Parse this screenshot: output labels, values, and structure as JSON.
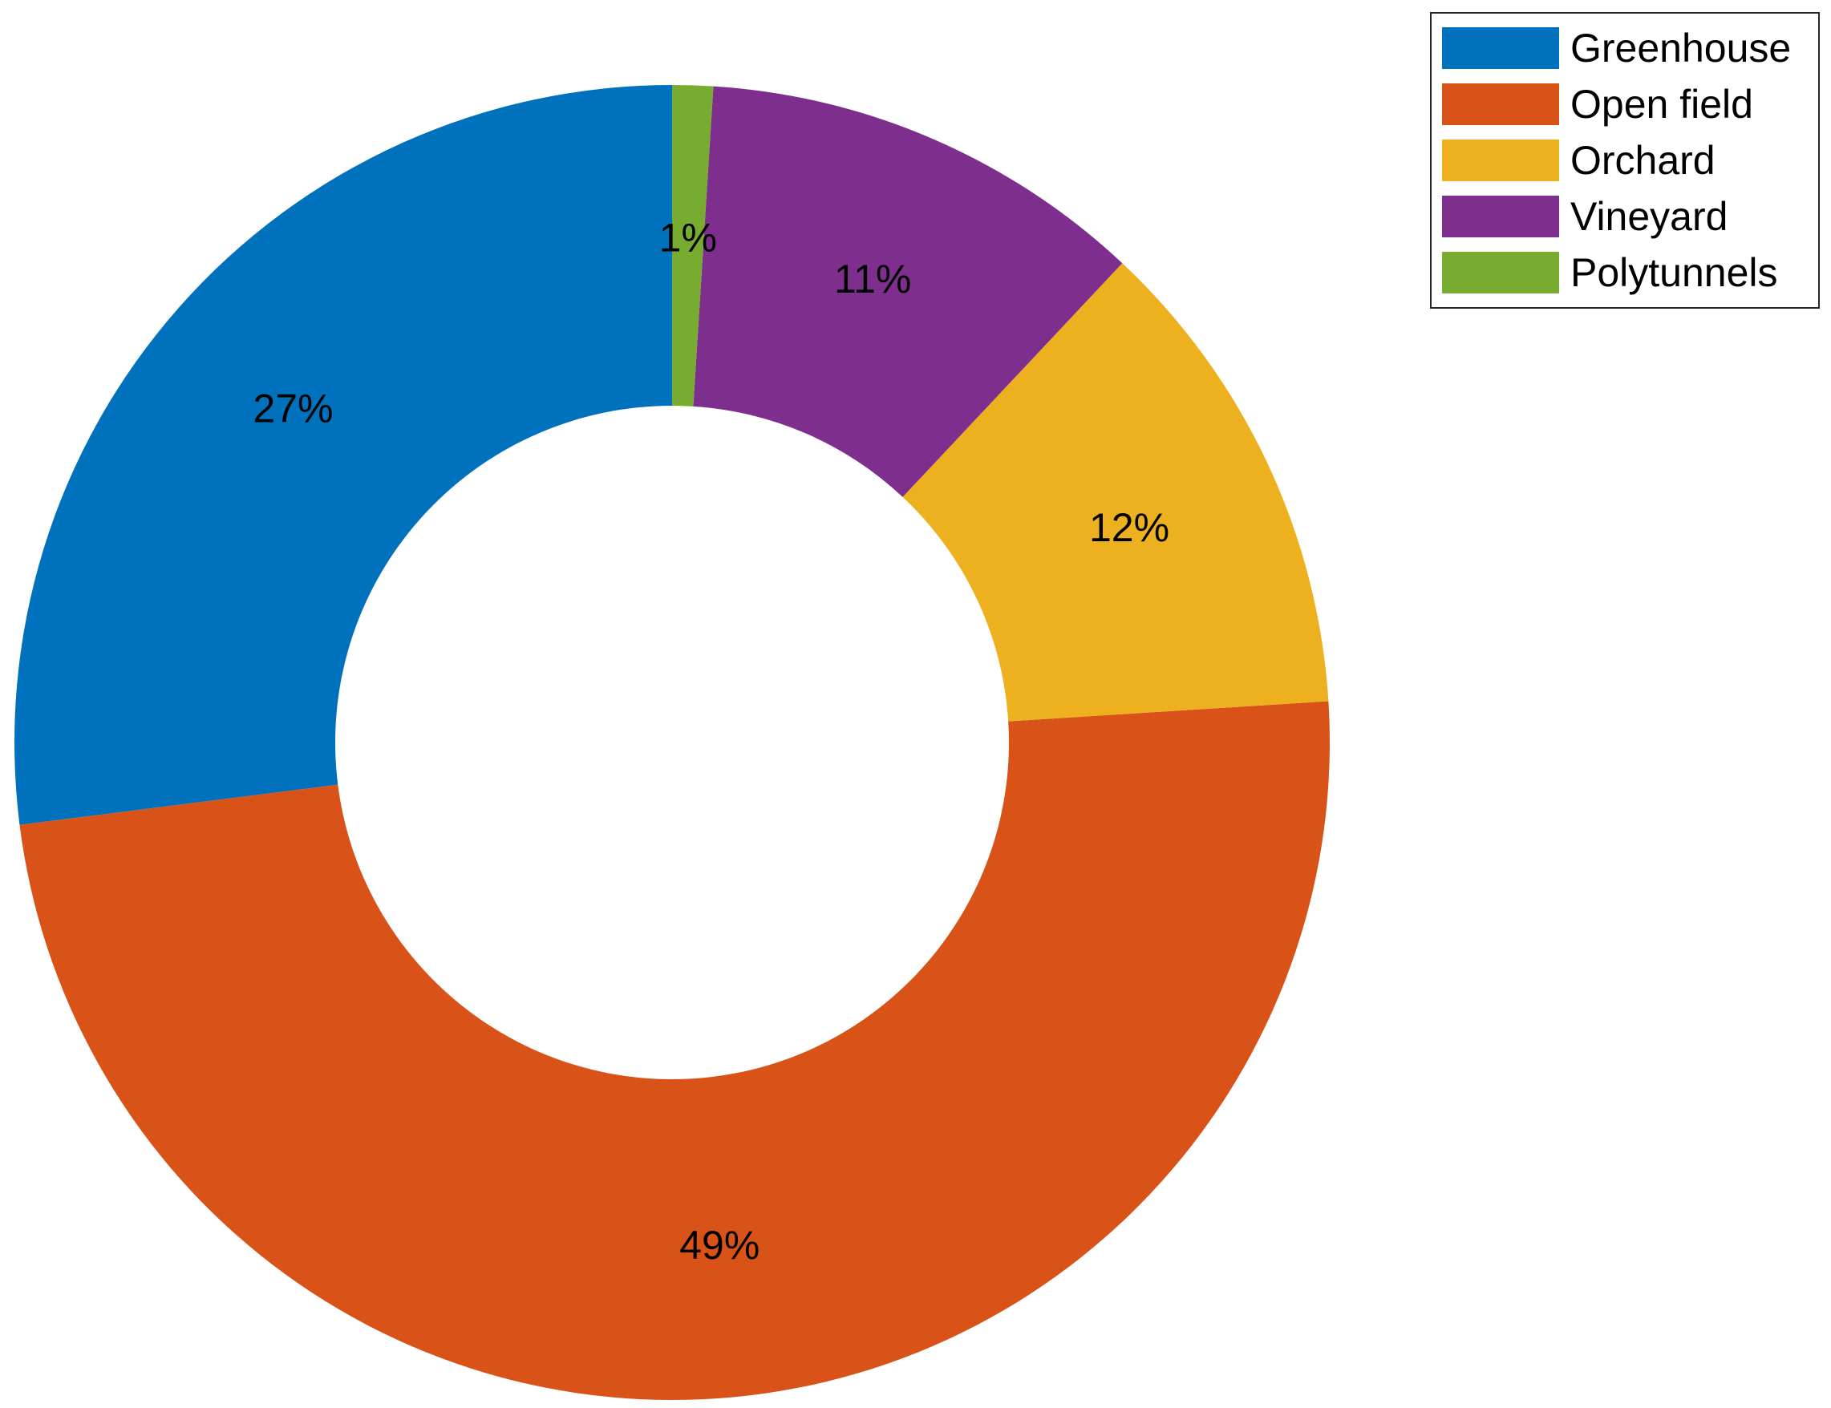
{
  "chart_data": {
    "type": "pie",
    "donut": true,
    "start_angle_deg": 90,
    "direction": "counterclockwise",
    "slices": [
      {
        "name": "Greenhouse",
        "value": 27,
        "label": "27%",
        "color": "#0072BD"
      },
      {
        "name": "Open field",
        "value": 49,
        "label": "49%",
        "color": "#D95319"
      },
      {
        "name": "Orchard",
        "value": 12,
        "label": "12%",
        "color": "#EDB120"
      },
      {
        "name": "Vineyard",
        "value": 11,
        "label": "11%",
        "color": "#7E2F8E"
      },
      {
        "name": "Polytunnels",
        "value": 1,
        "label": "1%",
        "color": "#77AC30"
      }
    ],
    "legend": {
      "placement": "top-right",
      "entries": [
        "Greenhouse",
        "Open field",
        "Orchard",
        "Vineyard",
        "Polytunnels"
      ]
    }
  }
}
